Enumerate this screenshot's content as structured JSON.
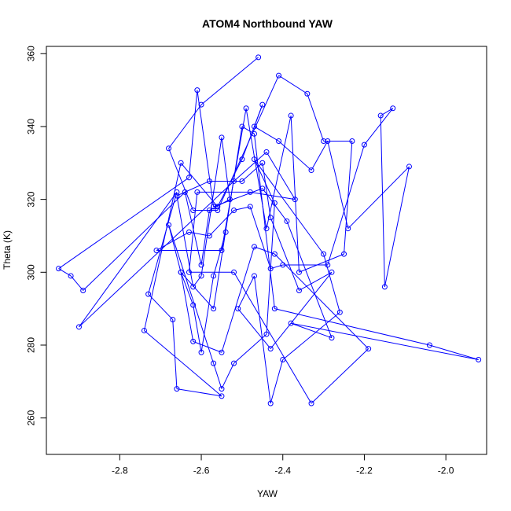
{
  "chart_data": {
    "type": "line",
    "title": "ATOM4 Northbound YAW",
    "xlabel": "YAW",
    "ylabel": "Theta (K)",
    "xlim": [
      -2.98,
      -1.9
    ],
    "ylim": [
      250,
      362
    ],
    "xticks": [
      -2.8,
      -2.6,
      -2.4,
      -2.2,
      -2.0
    ],
    "yticks": [
      260,
      280,
      300,
      320,
      340,
      360
    ],
    "xtick_labels": [
      "-2.8",
      "-2.6",
      "-2.4",
      "-2.2",
      "-2.0"
    ],
    "ytick_labels": [
      "260",
      "280",
      "300",
      "320",
      "340",
      "360"
    ],
    "series_color": "#0000ff",
    "marker": "open-circle",
    "grid": false,
    "series": [
      {
        "x": [
          -2.46,
          -2.6,
          -2.68,
          -2.62,
          -2.56,
          -2.41,
          -2.34,
          -2.3,
          -2.23,
          -2.25,
          -2.36,
          -2.38,
          -2.44,
          -2.49,
          -2.55,
          -2.71,
          -2.63,
          -2.58,
          -2.52,
          -2.48,
          -2.43,
          -2.4,
          -2.29,
          -2.2,
          -2.13,
          -2.16,
          -2.15,
          -2.09,
          -2.24,
          -2.29,
          -2.33,
          -2.41,
          -2.47,
          -2.45,
          -2.5,
          -2.56,
          -2.65,
          -2.74,
          -2.55,
          -2.66,
          -2.67,
          -2.73,
          -2.66,
          -2.9,
          -2.52,
          -2.44,
          -2.37,
          -2.48,
          -2.61,
          -2.63,
          -2.52,
          -2.33,
          -2.19,
          -2.42,
          -2.47,
          -2.55,
          -2.62,
          -2.65,
          -2.57,
          -2.5,
          -2.47,
          -2.42,
          -2.04,
          -1.92,
          -2.38,
          -2.28,
          -2.39,
          -2.45,
          -2.57,
          -2.61,
          -2.63,
          -2.95,
          -2.92,
          -2.89,
          -2.64,
          -2.6,
          -2.58,
          -2.53,
          -2.55,
          -2.6,
          -2.62,
          -2.66,
          -2.58,
          -2.5,
          -2.45,
          -2.43,
          -2.36,
          -2.28,
          -2.43,
          -2.51,
          -2.47,
          -2.43,
          -2.4,
          -2.26,
          -2.3,
          -2.47,
          -2.42,
          -2.44,
          -2.52,
          -2.55,
          -2.57,
          -2.68,
          -2.65,
          -2.62,
          -2.6,
          -2.57,
          -2.54
        ],
        "y": [
          359,
          346,
          334,
          317,
          317,
          354,
          349,
          336,
          336,
          305,
          300,
          343,
          312,
          345,
          306,
          306,
          311,
          310,
          317,
          318,
          301,
          302,
          302,
          335,
          345,
          343,
          296,
          329,
          312,
          336,
          328,
          336,
          340,
          346,
          331,
          318,
          330,
          284,
          266,
          268,
          287,
          294,
          322,
          285,
          325,
          333,
          320,
          322,
          322,
          300,
          300,
          264,
          279,
          305,
          307,
          278,
          281,
          300,
          290,
          340,
          338,
          290,
          280,
          276,
          286,
          282,
          314,
          323,
          318,
          350,
          326,
          301,
          299,
          295,
          322,
          302,
          317,
          320,
          337,
          299,
          296,
          321,
          325,
          325,
          330,
          315,
          295,
          300,
          279,
          290,
          299,
          264,
          276,
          289,
          305,
          331,
          319,
          283,
          275,
          268,
          275,
          313,
          300,
          291,
          278,
          299,
          311
        ]
      }
    ]
  }
}
